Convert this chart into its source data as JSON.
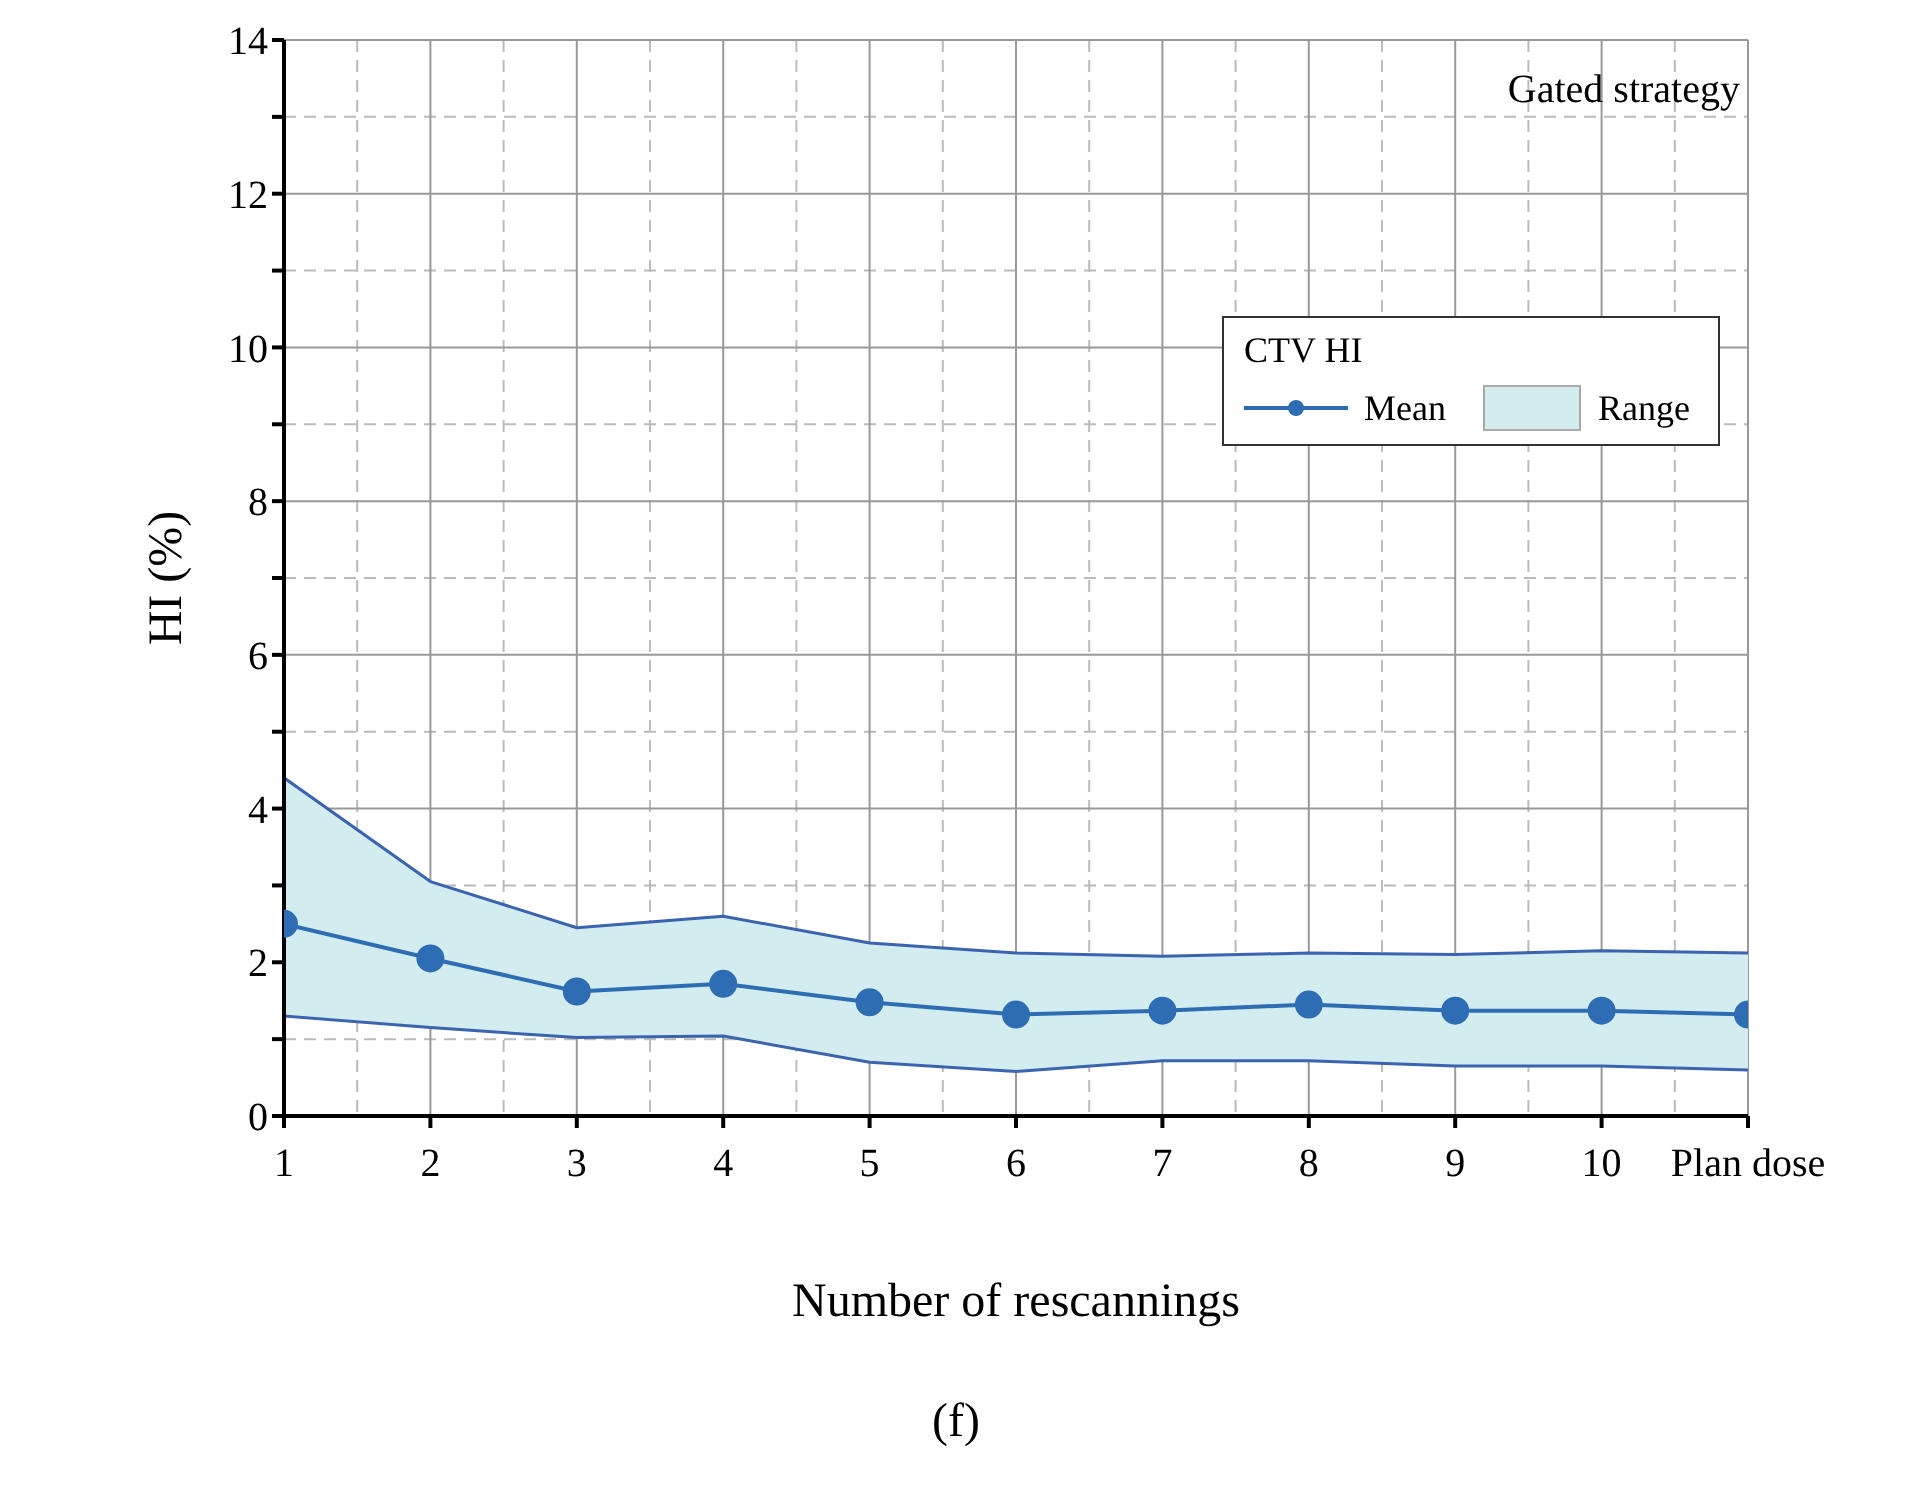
{
  "chart_data": {
    "type": "line",
    "xlabel": "Number of rescannings",
    "ylabel": "HI (%)",
    "legend_title": "CTV HI",
    "annotations": [
      "Gated strategy",
      "(f)",
      "Range"
    ],
    "categories": [
      "1",
      "2",
      "3",
      "4",
      "5",
      "6",
      "7",
      "8",
      "9",
      "10",
      "Plan dose"
    ],
    "series": [
      {
        "name": "Mean",
        "color": "#2e6db4",
        "marker": "circle",
        "values": [
          2.5,
          2.05,
          1.62,
          1.72,
          1.48,
          1.32,
          1.37,
          1.45,
          1.37,
          1.37,
          1.32
        ],
        "lower": [
          1.3,
          1.15,
          1.02,
          1.04,
          0.7,
          0.58,
          0.72,
          0.72,
          0.65,
          0.65,
          0.6
        ],
        "upper": [
          4.4,
          3.05,
          2.45,
          2.6,
          2.25,
          2.12,
          2.08,
          2.12,
          2.1,
          2.15,
          2.12
        ]
      },
      {
        "type": "line",
        "color": "#3a64b0",
        "marker": "none",
        "values": [
          4.4,
          3.05,
          2.45,
          2.6,
          2.25,
          2.12,
          2.08,
          2.12,
          2.1,
          2.15,
          2.12
        ]
      },
      {
        "type": "line",
        "color": "#3a64b0",
        "marker": "none",
        "values": [
          1.3,
          1.15,
          1.02,
          1.04,
          0.7,
          0.58,
          0.72,
          0.72,
          0.65,
          0.65,
          0.6
        ]
      }
    ],
    "ylim": [
      0,
      14
    ],
    "yticks": [
      0,
      {
        "value": 1,
        "label": null
      },
      2,
      {
        "value": 3,
        "label": null
      },
      4,
      {
        "value": 5,
        "label": null
      },
      6,
      {
        "value": 7,
        "label": null
      },
      8,
      {
        "value": 9,
        "label": null
      },
      10,
      {
        "value": 11,
        "label": null
      },
      12,
      {
        "value": 13,
        "label": null
      },
      14
    ],
    "grid": true,
    "legend": "top right"
  }
}
